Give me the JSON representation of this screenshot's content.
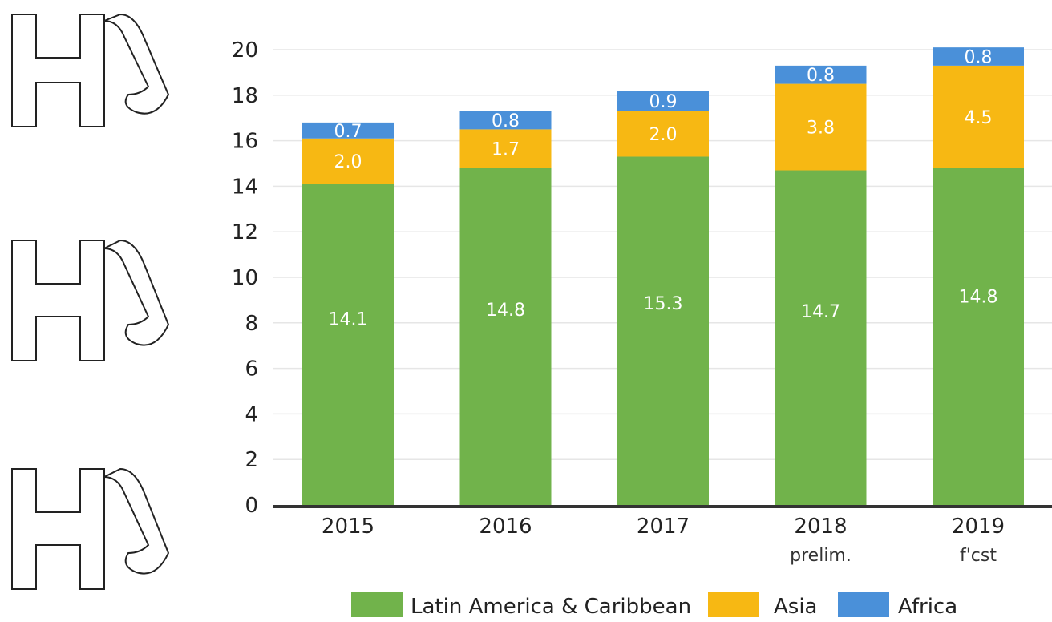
{
  "chart_data": {
    "type": "bar",
    "stacked": true,
    "categories": [
      "2015",
      "2016",
      "2017",
      "2018",
      "2019"
    ],
    "category_sublabels": [
      "",
      "",
      "",
      "prelim.",
      "f'cst"
    ],
    "series": [
      {
        "name": "Latin America & Caribbean",
        "values": [
          14.1,
          14.8,
          15.3,
          14.7,
          14.8
        ],
        "color": "#71b34b"
      },
      {
        "name": "Asia",
        "values": [
          2.0,
          1.7,
          2.0,
          3.8,
          4.5
        ],
        "color": "#f7b813"
      },
      {
        "name": "Africa",
        "values": [
          0.7,
          0.8,
          0.9,
          0.8,
          0.8
        ],
        "color": "#4a90d9"
      }
    ],
    "data_labels": [
      [
        "14.1",
        "14.8",
        "15.3",
        "14.7",
        "14.8"
      ],
      [
        "2.0",
        "1.7",
        "2.0",
        "3.8",
        "4.5"
      ],
      [
        "0.7",
        "0.8",
        "0.9",
        "0.8",
        "0.8"
      ]
    ],
    "yticks": [
      0,
      2,
      4,
      6,
      8,
      10,
      12,
      14,
      16,
      18,
      20
    ],
    "ylim": [
      0,
      20
    ],
    "grid": true,
    "legend_position": "bottom"
  }
}
